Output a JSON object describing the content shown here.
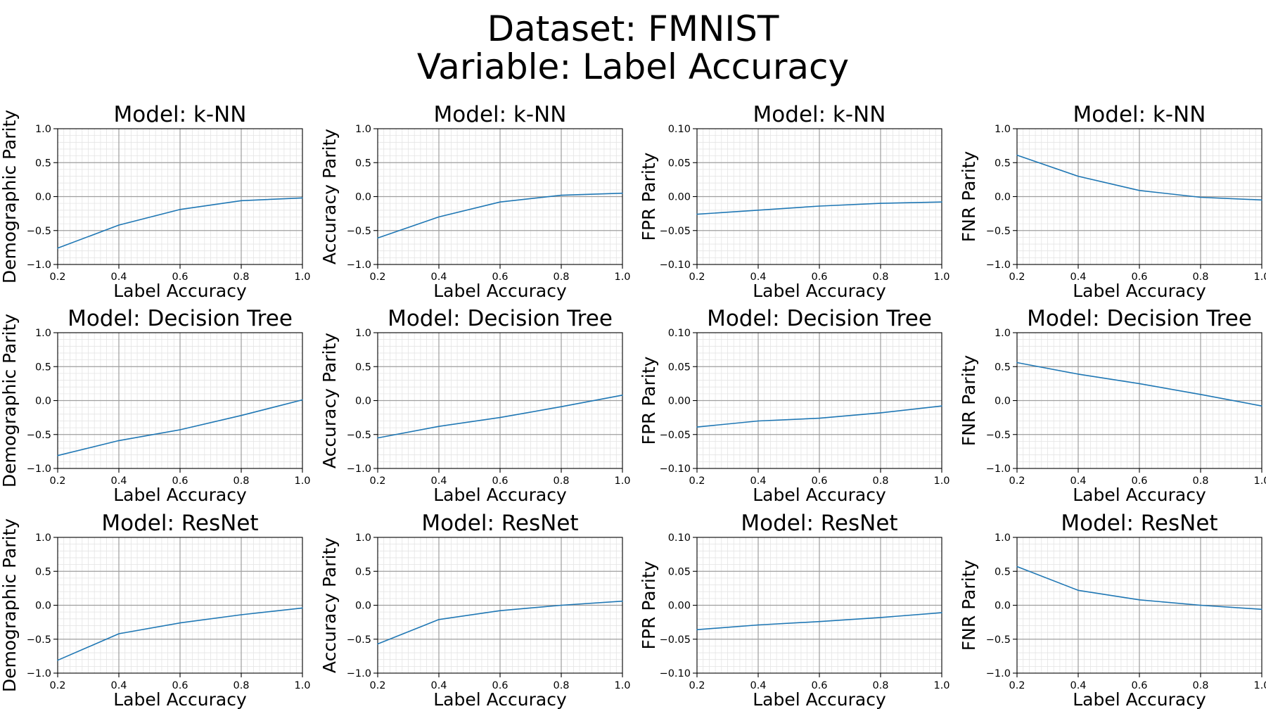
{
  "figure": {
    "title_lines": [
      "Dataset: FMNIST",
      "Variable: Label Accuracy"
    ],
    "line_color": "#1f77b4",
    "x_ticks": [
      "0.2",
      "0.4",
      "0.6",
      "0.8",
      "1.0"
    ],
    "y_ticks_unit": [
      "−1.0",
      "−0.5",
      "0.0",
      "0.5",
      "1.0"
    ],
    "y_ticks_small": [
      "−0.10",
      "−0.05",
      "0.00",
      "0.05",
      "0.10"
    ]
  },
  "chart_data": [
    {
      "type": "line",
      "title": "Model: k-NN",
      "xlabel": "Label Accuracy",
      "ylabel": "Demographic Parity",
      "x": [
        0.2,
        0.4,
        0.6,
        0.8,
        1.0
      ],
      "y": [
        -0.76,
        -0.42,
        -0.19,
        -0.06,
        -0.02
      ],
      "xlim": [
        0.2,
        1.0
      ],
      "ylim": [
        -1.0,
        1.0
      ],
      "grid": true,
      "y_ticks_key": "y_ticks_unit"
    },
    {
      "type": "line",
      "title": "Model: k-NN",
      "xlabel": "Label Accuracy",
      "ylabel": "Accuracy Parity",
      "x": [
        0.2,
        0.4,
        0.6,
        0.8,
        1.0
      ],
      "y": [
        -0.61,
        -0.3,
        -0.08,
        0.02,
        0.05
      ],
      "xlim": [
        0.2,
        1.0
      ],
      "ylim": [
        -1.0,
        1.0
      ],
      "grid": true,
      "y_ticks_key": "y_ticks_unit"
    },
    {
      "type": "line",
      "title": "Model: k-NN",
      "xlabel": "Label Accuracy",
      "ylabel": "FPR Parity",
      "x": [
        0.2,
        0.4,
        0.6,
        0.8,
        1.0
      ],
      "y": [
        -0.026,
        -0.02,
        -0.014,
        -0.01,
        -0.008
      ],
      "xlim": [
        0.2,
        1.0
      ],
      "ylim": [
        -0.1,
        0.1
      ],
      "grid": true,
      "y_ticks_key": "y_ticks_small"
    },
    {
      "type": "line",
      "title": "Model: k-NN",
      "xlabel": "Label Accuracy",
      "ylabel": "FNR Parity",
      "x": [
        0.2,
        0.4,
        0.6,
        0.8,
        1.0
      ],
      "y": [
        0.61,
        0.3,
        0.09,
        -0.01,
        -0.05
      ],
      "xlim": [
        0.2,
        1.0
      ],
      "ylim": [
        -1.0,
        1.0
      ],
      "grid": true,
      "y_ticks_key": "y_ticks_unit"
    },
    {
      "type": "line",
      "title": "Model: Decision Tree",
      "xlabel": "Label Accuracy",
      "ylabel": "Demographic Parity",
      "x": [
        0.2,
        0.4,
        0.6,
        0.8,
        1.0
      ],
      "y": [
        -0.81,
        -0.59,
        -0.43,
        -0.22,
        0.01
      ],
      "xlim": [
        0.2,
        1.0
      ],
      "ylim": [
        -1.0,
        1.0
      ],
      "grid": true,
      "y_ticks_key": "y_ticks_unit"
    },
    {
      "type": "line",
      "title": "Model: Decision Tree",
      "xlabel": "Label Accuracy",
      "ylabel": "Accuracy Parity",
      "x": [
        0.2,
        0.4,
        0.6,
        0.8,
        1.0
      ],
      "y": [
        -0.55,
        -0.38,
        -0.25,
        -0.09,
        0.08
      ],
      "xlim": [
        0.2,
        1.0
      ],
      "ylim": [
        -1.0,
        1.0
      ],
      "grid": true,
      "y_ticks_key": "y_ticks_unit"
    },
    {
      "type": "line",
      "title": "Model: Decision Tree",
      "xlabel": "Label Accuracy",
      "ylabel": "FPR Parity",
      "x": [
        0.2,
        0.4,
        0.6,
        0.8,
        1.0
      ],
      "y": [
        -0.039,
        -0.03,
        -0.026,
        -0.018,
        -0.008
      ],
      "xlim": [
        0.2,
        1.0
      ],
      "ylim": [
        -0.1,
        0.1
      ],
      "grid": true,
      "y_ticks_key": "y_ticks_small"
    },
    {
      "type": "line",
      "title": "Model: Decision Tree",
      "xlabel": "Label Accuracy",
      "ylabel": "FNR Parity",
      "x": [
        0.2,
        0.4,
        0.6,
        0.8,
        1.0
      ],
      "y": [
        0.56,
        0.39,
        0.25,
        0.09,
        -0.08
      ],
      "xlim": [
        0.2,
        1.0
      ],
      "ylim": [
        -1.0,
        1.0
      ],
      "grid": true,
      "y_ticks_key": "y_ticks_unit"
    },
    {
      "type": "line",
      "title": "Model: ResNet",
      "xlabel": "Label Accuracy",
      "ylabel": "Demographic Parity",
      "x": [
        0.2,
        0.4,
        0.6,
        0.8,
        1.0
      ],
      "y": [
        -0.81,
        -0.42,
        -0.26,
        -0.14,
        -0.04
      ],
      "xlim": [
        0.2,
        1.0
      ],
      "ylim": [
        -1.0,
        1.0
      ],
      "grid": true,
      "y_ticks_key": "y_ticks_unit"
    },
    {
      "type": "line",
      "title": "Model: ResNet",
      "xlabel": "Label Accuracy",
      "ylabel": "Accuracy Parity",
      "x": [
        0.2,
        0.4,
        0.6,
        0.8,
        1.0
      ],
      "y": [
        -0.57,
        -0.21,
        -0.08,
        0.0,
        0.06
      ],
      "xlim": [
        0.2,
        1.0
      ],
      "ylim": [
        -1.0,
        1.0
      ],
      "grid": true,
      "y_ticks_key": "y_ticks_unit"
    },
    {
      "type": "line",
      "title": "Model: ResNet",
      "xlabel": "Label Accuracy",
      "ylabel": "FPR Parity",
      "x": [
        0.2,
        0.4,
        0.6,
        0.8,
        1.0
      ],
      "y": [
        -0.036,
        -0.029,
        -0.024,
        -0.018,
        -0.011
      ],
      "xlim": [
        0.2,
        1.0
      ],
      "ylim": [
        -0.1,
        0.1
      ],
      "grid": true,
      "y_ticks_key": "y_ticks_small"
    },
    {
      "type": "line",
      "title": "Model: ResNet",
      "xlabel": "Label Accuracy",
      "ylabel": "FNR Parity",
      "x": [
        0.2,
        0.4,
        0.6,
        0.8,
        1.0
      ],
      "y": [
        0.57,
        0.22,
        0.08,
        0.0,
        -0.06
      ],
      "xlim": [
        0.2,
        1.0
      ],
      "ylim": [
        -1.0,
        1.0
      ],
      "grid": true,
      "y_ticks_key": "y_ticks_unit"
    }
  ]
}
